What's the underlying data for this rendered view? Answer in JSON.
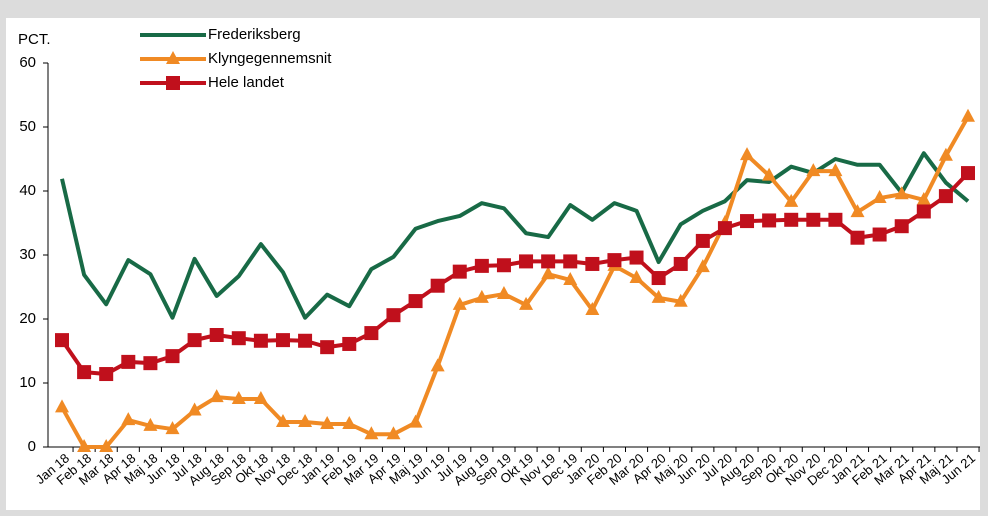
{
  "chart_data": {
    "type": "line",
    "y_label": "PCT.",
    "categories": [
      "Jan 18",
      "Feb 18",
      "Mar 18",
      "Apr 18",
      "Maj 18",
      "Jun 18",
      "Jul 18",
      "Aug 18",
      "Sep 18",
      "Okt 18",
      "Nov 18",
      "Dec 18",
      "Jan 19",
      "Feb 19",
      "Mar 19",
      "Apr 19",
      "Maj 19",
      "Jun 19",
      "Jul 19",
      "Aug 19",
      "Sep 19",
      "Okt 19",
      "Nov 19",
      "Dec 19",
      "Jan 20",
      "Feb 20",
      "Mar 20",
      "Apr 20",
      "Maj 20",
      "Jun 20",
      "Jul 20",
      "Aug 20",
      "Sep 20",
      "Okt 20",
      "Nov 20",
      "Dec 20",
      "Jan 21",
      "Feb 21",
      "Mar 21",
      "Apr 21",
      "Maj 21",
      "Jun 21"
    ],
    "series": [
      {
        "name": "Frederiksberg",
        "color": "#186a46",
        "marker": "none",
        "values": [
          41.9,
          26.9,
          22.3,
          29.2,
          27,
          20.2,
          29.4,
          23.6,
          26.7,
          31.7,
          27.3,
          20.2,
          23.8,
          22,
          27.8,
          29.7,
          34.1,
          35.3,
          36.1,
          38.1,
          37.3,
          33.4,
          32.8,
          37.8,
          35.5,
          38.1,
          36.9,
          28.9,
          34.8,
          36.9,
          38.4,
          41.7,
          41.4,
          43.8,
          42.8,
          45,
          44.1,
          44.1,
          39.7,
          45.9,
          41.3,
          38.4
        ]
      },
      {
        "name": "Klyngegennemsnit",
        "color": "#f08a24",
        "marker": "triangle",
        "values": [
          6.2,
          0,
          0,
          4.2,
          3.3,
          2.8,
          5.7,
          7.8,
          7.5,
          7.5,
          3.9,
          3.9,
          3.6,
          3.6,
          2,
          2,
          3.8,
          12.6,
          22.2,
          23.3,
          23.9,
          22.2,
          27,
          26.1,
          21.4,
          28.3,
          26.4,
          23.3,
          22.7,
          28.1,
          35,
          45.6,
          42.4,
          38.3,
          43.1,
          43.1,
          36.7,
          38.9,
          39.5,
          38.6,
          45.5,
          51.6
        ]
      },
      {
        "name": "Hele landet",
        "color": "#c0101c",
        "marker": "square",
        "values": [
          16.7,
          11.7,
          11.4,
          13.3,
          13.1,
          14.2,
          16.7,
          17.5,
          17,
          16.6,
          16.7,
          16.6,
          15.6,
          16.1,
          17.8,
          20.6,
          22.8,
          25.2,
          27.4,
          28.3,
          28.4,
          29,
          29,
          29,
          28.6,
          29.2,
          29.6,
          26.4,
          28.6,
          32.2,
          34.2,
          35.3,
          35.4,
          35.5,
          35.5,
          35.5,
          32.7,
          33.2,
          34.5,
          36.8,
          39.2,
          42.8
        ]
      }
    ],
    "ylim": [
      0,
      60
    ],
    "yticks": [
      0,
      10,
      20,
      30,
      40,
      50,
      60
    ],
    "grid": false,
    "legend": "top-left"
  }
}
